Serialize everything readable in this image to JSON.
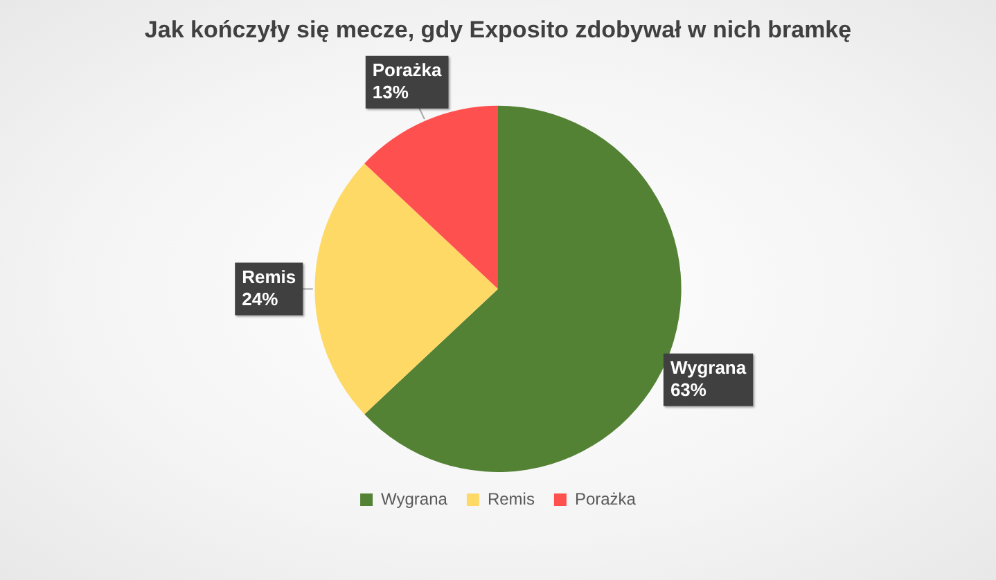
{
  "chart_data": {
    "type": "pie",
    "title": "Jak kończyły się mecze, gdy Exposito zdobywał w nich bramkę",
    "categories": [
      "Wygrana",
      "Remis",
      "Porażka"
    ],
    "values": [
      63,
      24,
      13
    ],
    "colors": [
      "#548235",
      "#ffd966",
      "#ff5050"
    ],
    "value_labels": [
      "63%",
      "24%",
      "13%"
    ],
    "legend": "bottom"
  }
}
